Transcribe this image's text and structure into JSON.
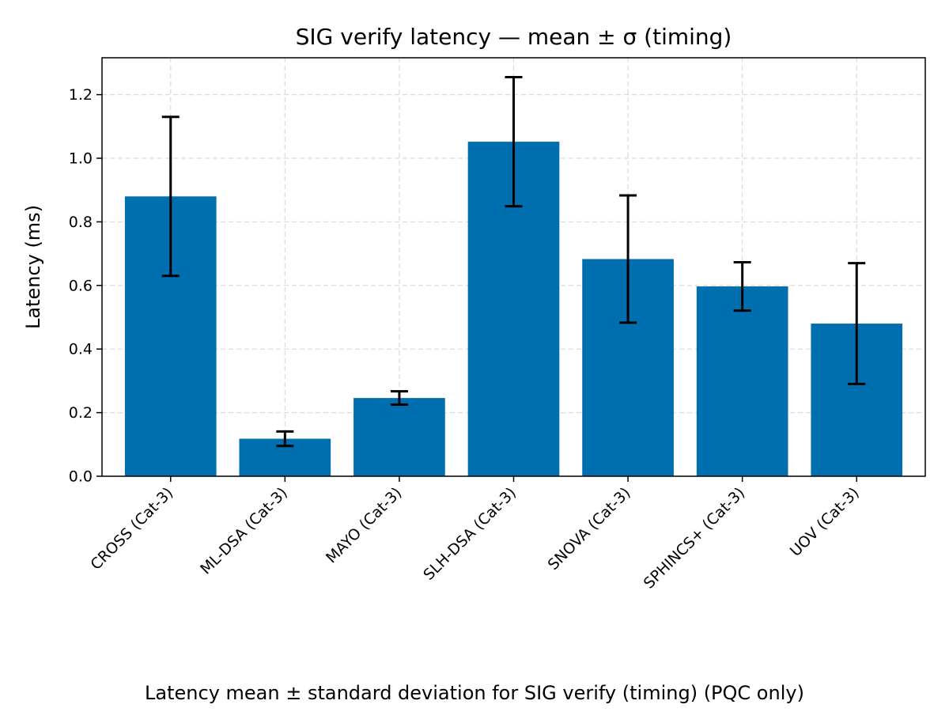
{
  "chart_data": {
    "type": "bar",
    "title": "SIG verify latency — mean ± σ (timing)",
    "xlabel": "",
    "ylabel": "Latency (ms)",
    "caption": "Latency mean ± standard deviation for SIG verify (timing) (PQC only)",
    "categories": [
      "CROSS (Cat-3)",
      "ML-DSA (Cat-3)",
      "MAYO (Cat-3)",
      "SLH-DSA (Cat-3)",
      "SNOVA (Cat-3)",
      "SPHINCS+ (Cat-3)",
      "UOV (Cat-3)"
    ],
    "values": [
      0.88,
      0.118,
      0.246,
      1.052,
      0.683,
      0.597,
      0.48
    ],
    "errors": [
      0.25,
      0.023,
      0.021,
      0.203,
      0.2,
      0.076,
      0.19
    ],
    "ylim": [
      0,
      1.316
    ],
    "yticks": [
      "0.0",
      "0.2",
      "0.4",
      "0.6",
      "0.8",
      "1.0",
      "1.2"
    ],
    "grid": true,
    "bar_color": "#006fb0",
    "error_color": "#000000"
  }
}
